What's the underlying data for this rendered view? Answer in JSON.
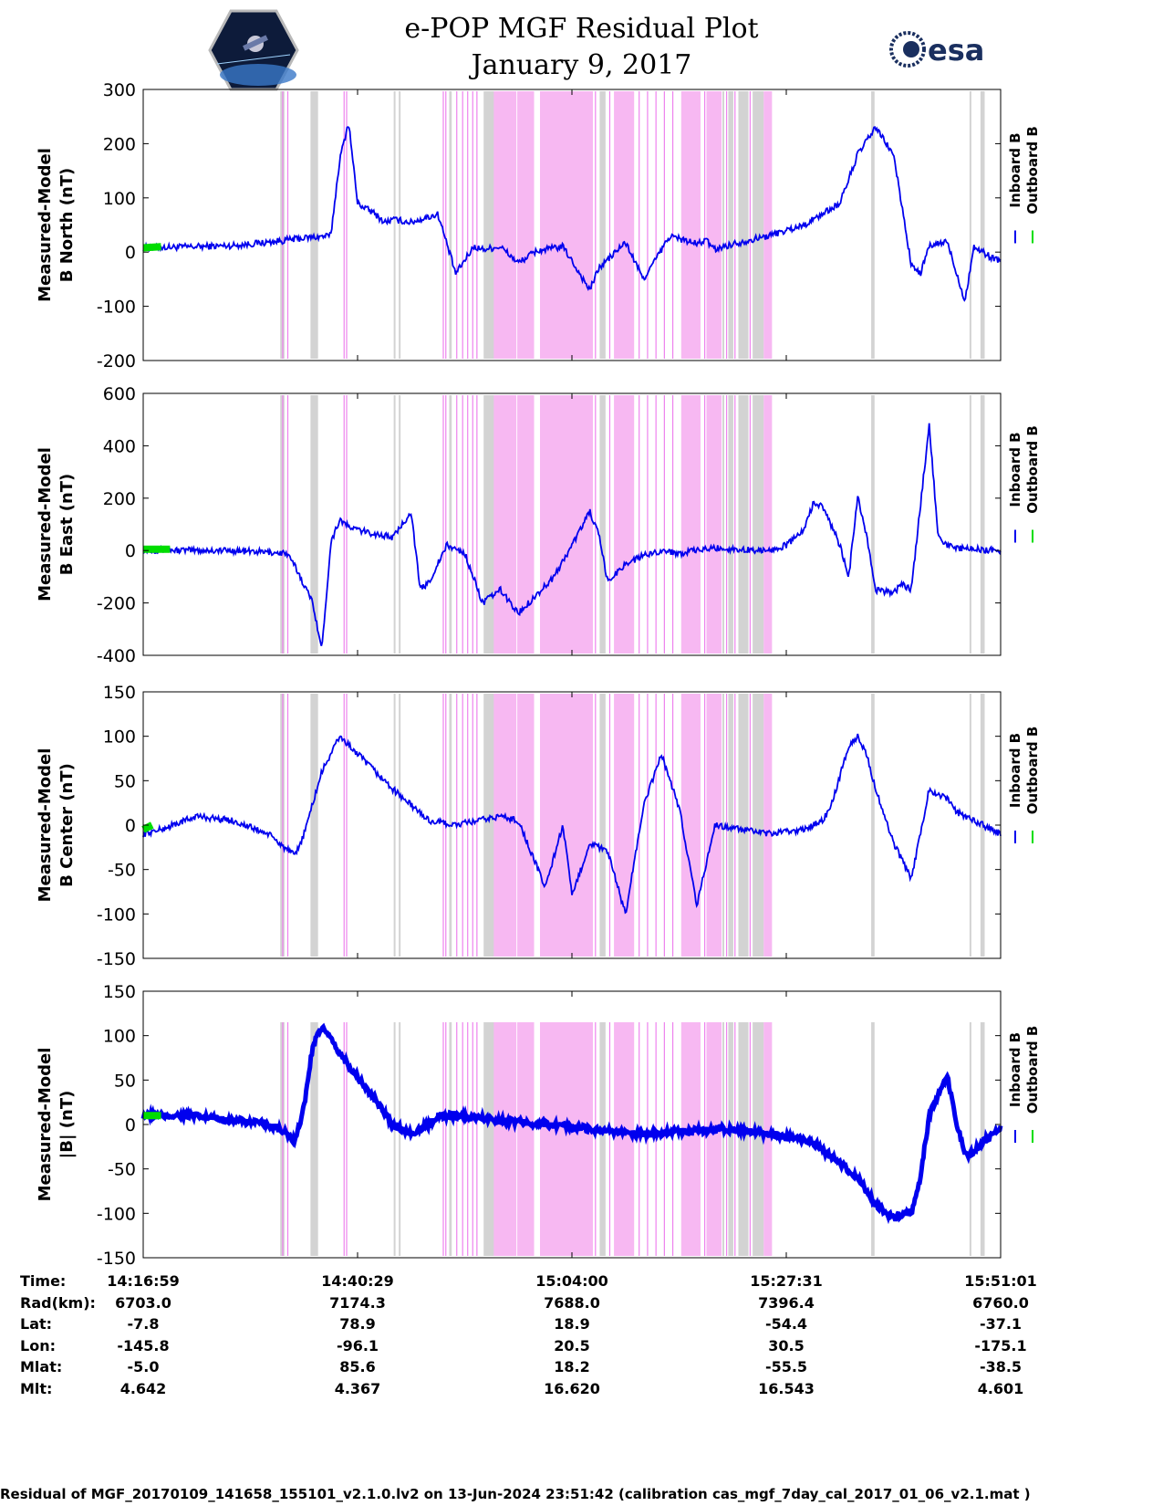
{
  "header": {
    "title": "e-POP MGF Residual Plot",
    "subtitle": "January 9, 2017",
    "logo_right": "esa"
  },
  "colors": {
    "inboard": "#0000ee",
    "outboard": "#00dd00",
    "gray_band": "#d3d3d3",
    "magenta_band": "#f7b8f2",
    "magenta_line": "#ee82ee"
  },
  "chart_data": [
    {
      "type": "line",
      "ylabel_lines": [
        "Measured-Model",
        "B North (nT)"
      ],
      "ylim": [
        -200,
        300
      ],
      "yticks": [
        300,
        200,
        100,
        0,
        -100,
        -200
      ],
      "legend": [
        "Inboard B",
        "Outboard B"
      ],
      "series": [
        {
          "name": "Inboard B",
          "color": "#0000ee",
          "x": [
            0,
            6,
            10,
            14,
            18,
            21,
            22,
            23,
            24,
            25,
            26,
            27,
            28,
            30,
            33,
            35,
            37,
            38,
            40,
            42,
            44,
            47,
            50,
            51,
            54,
            56,
            59,
            61,
            62,
            63,
            64,
            66,
            70,
            74,
            78,
            80,
            82,
            84,
            85,
            86,
            87,
            88,
            90,
            92,
            93,
            94,
            95,
            96
          ],
          "y": [
            8,
            10,
            12,
            18,
            26,
            30,
            170,
            240,
            90,
            80,
            70,
            55,
            60,
            55,
            70,
            -40,
            10,
            5,
            10,
            -20,
            2,
            10,
            -70,
            -30,
            18,
            -50,
            30,
            20,
            15,
            22,
            5,
            15,
            30,
            50,
            90,
            180,
            230,
            180,
            80,
            -25,
            -40,
            10,
            20,
            -90,
            10,
            0,
            -10,
            -15
          ]
        }
      ],
      "outboard_segment": {
        "x": [
          0,
          2
        ],
        "y": [
          8,
          10
        ]
      }
    },
    {
      "type": "line",
      "ylabel_lines": [
        "Measured-Model",
        "B East (nT)"
      ],
      "ylim": [
        -400,
        600
      ],
      "yticks": [
        600,
        400,
        200,
        0,
        -200,
        -400
      ],
      "legend": [
        "Inboard B",
        "Outboard B"
      ],
      "series": [
        {
          "name": "Inboard B",
          "color": "#0000ee",
          "x": [
            0,
            10,
            16,
            17,
            19,
            20,
            21,
            22,
            23,
            25,
            28,
            30,
            31,
            32,
            34,
            36,
            38,
            40,
            42,
            44,
            46,
            48,
            50,
            51,
            52,
            54,
            56,
            58,
            60,
            62,
            64,
            66,
            70,
            72,
            74,
            75,
            76,
            77,
            78,
            79,
            80,
            81,
            82,
            84,
            85,
            86,
            88,
            89,
            90,
            91,
            93,
            96
          ],
          "y": [
            2,
            0,
            -10,
            -60,
            -200,
            -380,
            30,
            120,
            90,
            70,
            50,
            150,
            -150,
            -120,
            20,
            -10,
            -200,
            -150,
            -240,
            -170,
            -100,
            20,
            150,
            60,
            -120,
            -50,
            -20,
            0,
            -10,
            0,
            10,
            5,
            0,
            20,
            80,
            180,
            170,
            100,
            20,
            -100,
            210,
            50,
            -150,
            -160,
            -130,
            -150,
            480,
            60,
            20,
            10,
            5,
            0
          ]
        }
      ],
      "outboard_segment": {
        "x": [
          0,
          3
        ],
        "y": [
          5,
          5
        ]
      }
    },
    {
      "type": "line",
      "ylabel_lines": [
        "Measured-Model",
        "B Center (nT)"
      ],
      "ylim": [
        -150,
        150
      ],
      "yticks": [
        150,
        100,
        50,
        0,
        -50,
        -100,
        -150
      ],
      "legend": [
        "Inboard B",
        "Outboard B"
      ],
      "series": [
        {
          "name": "Inboard B",
          "color": "#0000ee",
          "x": [
            0,
            2,
            6,
            10,
            14,
            17,
            18,
            20,
            22,
            24,
            28,
            32,
            35,
            40,
            42,
            45,
            47,
            48,
            50,
            52,
            54,
            56,
            58,
            60,
            62,
            64,
            70,
            74,
            76,
            77,
            79,
            80,
            81,
            82,
            84,
            86,
            88,
            90,
            91,
            93,
            96
          ],
          "y": [
            -10,
            -5,
            10,
            5,
            -10,
            -35,
            -10,
            60,
            100,
            80,
            40,
            5,
            0,
            10,
            5,
            -70,
            0,
            -80,
            -20,
            -30,
            -100,
            20,
            80,
            20,
            -90,
            0,
            -10,
            -5,
            5,
            20,
            90,
            100,
            80,
            40,
            -20,
            -60,
            40,
            30,
            15,
            5,
            -10
          ]
        }
      ],
      "outboard_segment": {
        "x": [
          0,
          1
        ],
        "y": [
          -5,
          0
        ]
      }
    },
    {
      "type": "line",
      "ylabel_lines": [
        "Measured-Model",
        "|B| (nT)"
      ],
      "ylim": [
        -150,
        150
      ],
      "yticks": [
        150,
        100,
        50,
        0,
        -50,
        -100,
        -150
      ],
      "legend": [
        "Inboard B",
        "Outboard B"
      ],
      "series": [
        {
          "name": "Inboard B",
          "color": "#0000ee",
          "x": [
            0,
            5,
            10,
            14,
            16,
            17,
            18,
            19,
            20,
            22,
            25,
            28,
            30,
            32,
            33,
            35,
            40,
            45,
            50,
            55,
            60,
            65,
            70,
            75,
            80,
            82,
            84,
            86,
            87,
            88,
            90,
            91,
            92,
            93,
            94,
            96
          ],
          "y": [
            10,
            10,
            5,
            0,
            -10,
            -20,
            20,
            90,
            110,
            80,
            40,
            0,
            -10,
            0,
            10,
            10,
            5,
            0,
            -5,
            -10,
            -8,
            -5,
            -10,
            -20,
            -60,
            -90,
            -105,
            -100,
            -60,
            10,
            55,
            5,
            -35,
            -30,
            -20,
            -5
          ]
        }
      ],
      "outboard_segment": {
        "x": [
          0,
          2
        ],
        "y": [
          10,
          10
        ]
      }
    }
  ],
  "axes_x": {
    "xlim": [
      0,
      96
    ],
    "tick_positions": [
      0,
      24,
      48,
      72,
      96
    ]
  },
  "bands": {
    "gray": [
      [
        16.3,
        16.8
      ],
      [
        19.9,
        20.8
      ],
      [
        29.8,
        30.0
      ],
      [
        30.4,
        30.6
      ],
      [
        36.4,
        36.7
      ],
      [
        40.5,
        41.7
      ],
      [
        54.3,
        55.0
      ],
      [
        68.9,
        69.1
      ],
      [
        69.6,
        70.2
      ],
      [
        70.8,
        72.0
      ],
      [
        72.5,
        73.8
      ],
      [
        86.6,
        87.0
      ],
      [
        98.3,
        98.5
      ],
      [
        99.6,
        100.1
      ]
    ],
    "magenta_solid": [
      [
        40.9,
        44.4
      ],
      [
        44.5,
        46.5
      ],
      [
        47.2,
        53.5
      ],
      [
        56.0,
        58.4
      ],
      [
        64.0,
        66.3
      ],
      [
        67.0,
        68.8
      ],
      [
        73.8,
        74.8
      ]
    ],
    "magenta_lines": [
      16.6,
      17.2,
      23.9,
      24.2,
      35.7,
      36.0,
      37.3,
      38.0,
      38.6,
      39.2,
      39.7,
      53.8,
      55.5,
      59.0,
      60.0,
      61.0,
      62.0,
      63.0,
      66.8,
      69.4,
      70.4,
      72.2
    ]
  },
  "info_table": {
    "labels": [
      "Time:",
      "Rad(km):",
      "Lat:",
      "Lon:",
      "Mlat:",
      "Mlt:"
    ],
    "columns": [
      [
        "14:16:59",
        "6703.0",
        "-7.8",
        "-145.8",
        "-5.0",
        "4.642"
      ],
      [
        "14:40:29",
        "7174.3",
        "78.9",
        "-96.1",
        "85.6",
        "4.367"
      ],
      [
        "15:04:00",
        "7688.0",
        "18.9",
        "20.5",
        "18.2",
        "16.620"
      ],
      [
        "15:27:31",
        "7396.4",
        "-54.4",
        "30.5",
        "-55.5",
        "16.543"
      ],
      [
        "15:51:01",
        "6760.0",
        "-37.1",
        "-175.1",
        "-38.5",
        "4.601"
      ]
    ]
  },
  "footer": "Residual of MGF_20170109_141658_155101_v2.1.0.lv2 on 13-Jun-2024 23:51:42 (calibration cas_mgf_7day_cal_2017_01_06_v2.1.mat )"
}
